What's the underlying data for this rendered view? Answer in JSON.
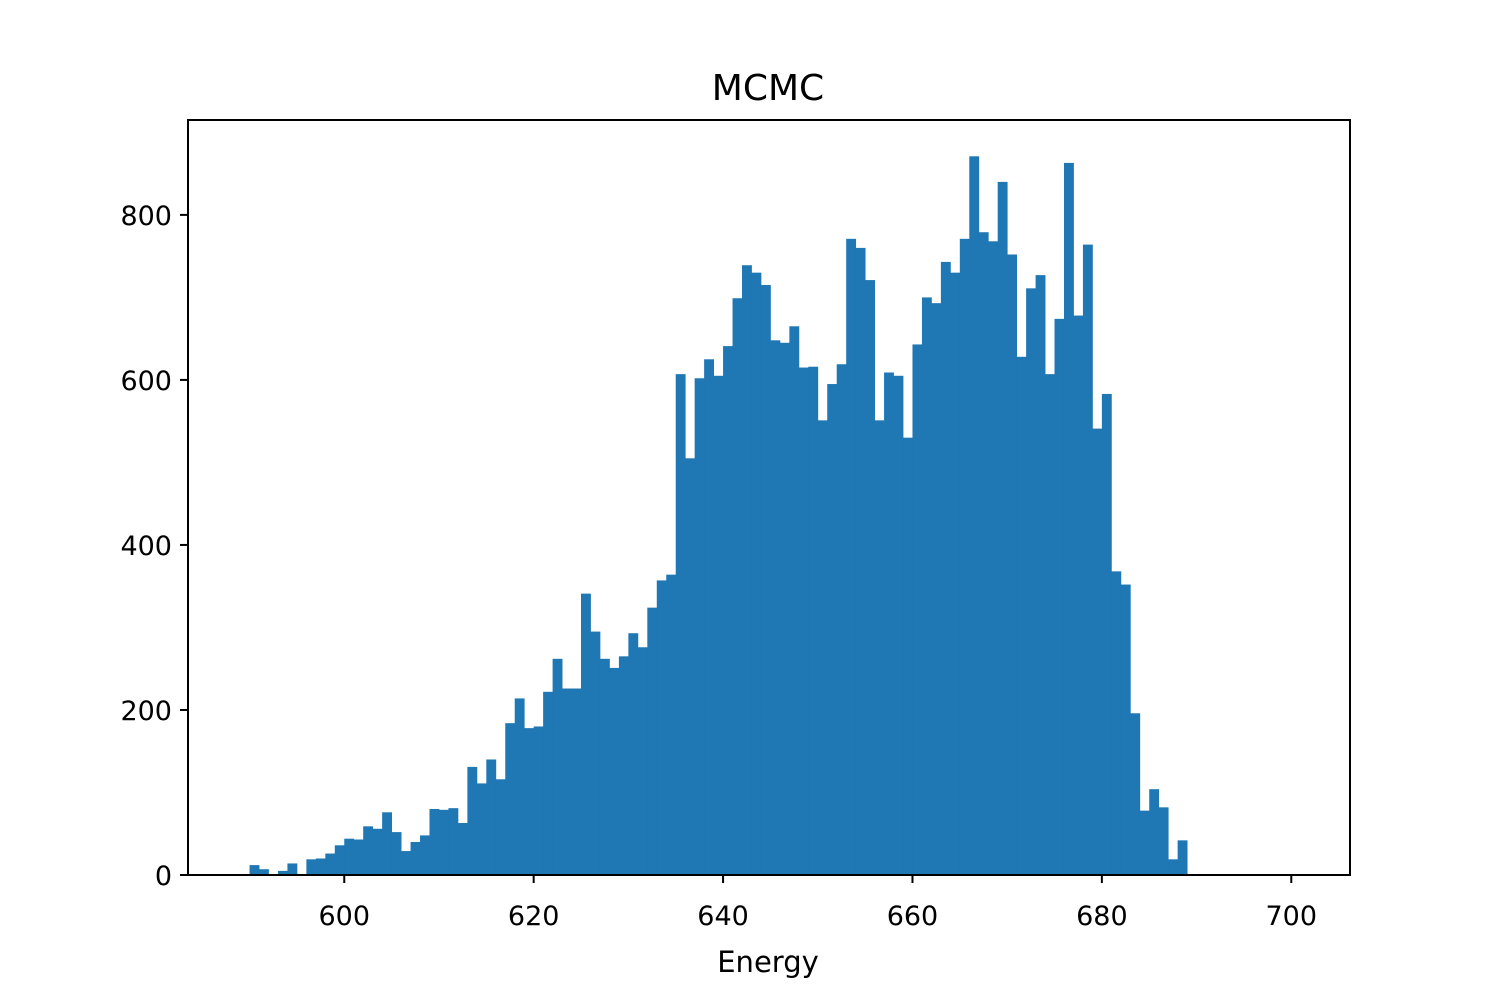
{
  "chart_data": {
    "type": "bar",
    "title": "MCMC",
    "xlabel": "Energy",
    "ylabel": "",
    "xlim": [
      583.5,
      706.2
    ],
    "ylim": [
      0,
      915
    ],
    "xticks": [
      600,
      620,
      640,
      660,
      680,
      700
    ],
    "yticks": [
      0,
      200,
      400,
      600,
      800
    ],
    "grid": false,
    "bar_color": "#1f77b4",
    "bin_start": 590.0,
    "bin_width": 1.0,
    "counts": [
      12,
      7,
      0,
      5,
      14,
      0,
      19,
      20,
      26,
      36,
      44,
      43,
      59,
      56,
      76,
      52,
      29,
      40,
      48,
      80,
      79,
      81,
      63,
      131,
      111,
      140,
      116,
      184,
      214,
      178,
      180,
      222,
      262,
      226,
      226,
      341,
      295,
      262,
      251,
      265,
      293,
      276,
      324,
      357,
      364,
      607,
      505,
      602,
      625,
      605,
      641,
      699,
      739,
      730,
      715,
      648,
      645,
      665,
      615,
      616,
      551,
      595,
      619,
      771,
      760,
      721,
      551,
      609,
      605,
      530,
      643,
      700,
      693,
      743,
      730,
      771,
      871,
      779,
      768,
      840,
      752,
      628,
      711,
      727,
      607,
      674,
      863,
      678,
      764,
      541,
      583,
      368,
      352,
      196,
      78,
      104,
      82,
      19,
      42
    ]
  }
}
